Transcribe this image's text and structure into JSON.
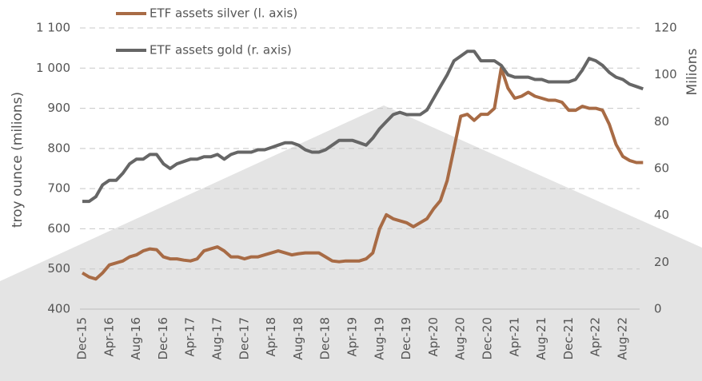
{
  "chart_data": {
    "type": "line",
    "y_label": "troy ounce (milions)",
    "y2_label": "Milions",
    "categories": [
      "Dec-15",
      null,
      null,
      null,
      "Apr-16",
      null,
      null,
      null,
      "Aug-16",
      null,
      null,
      null,
      "Dec-16",
      null,
      null,
      null,
      "Apr-17",
      null,
      null,
      null,
      "Aug-17",
      null,
      null,
      null,
      "Dec-17",
      null,
      null,
      null,
      "Apr-18",
      null,
      null,
      null,
      "Aug-18",
      null,
      null,
      null,
      "Dec-18",
      null,
      null,
      null,
      "Apr-19",
      null,
      null,
      null,
      "Aug-19",
      null,
      null,
      null,
      "Dec-19",
      null,
      null,
      null,
      "Apr-20",
      null,
      null,
      null,
      "Aug-20",
      null,
      null,
      null,
      "Dec-20",
      null,
      null,
      null,
      "Apr-21",
      null,
      null,
      null,
      "Aug-21",
      null,
      null,
      null,
      "Dec-21",
      null,
      null,
      null,
      "Apr-22",
      null,
      null,
      null,
      "Aug-22",
      null,
      null,
      null
    ],
    "series": [
      {
        "name": "ETF assets silver (l. axis)",
        "color": "#a86b45",
        "axis": "y",
        "values": [
          490,
          480,
          475,
          490,
          510,
          515,
          520,
          530,
          535,
          545,
          550,
          548,
          530,
          525,
          525,
          522,
          520,
          525,
          545,
          550,
          555,
          545,
          530,
          530,
          525,
          530,
          530,
          535,
          540,
          545,
          540,
          535,
          538,
          540,
          540,
          540,
          530,
          520,
          518,
          520,
          520,
          520,
          525,
          540,
          600,
          635,
          625,
          620,
          615,
          605,
          615,
          625,
          650,
          670,
          720,
          800,
          880,
          885,
          870,
          885,
          885,
          900,
          1000,
          950,
          925,
          930,
          940,
          930,
          925,
          920,
          920,
          915,
          895,
          895,
          905,
          900,
          900,
          895,
          860,
          810,
          780,
          770,
          765,
          765
        ]
      },
      {
        "name": "ETF assets gold (r. axis)",
        "color": "#666666",
        "axis": "y2",
        "values": [
          46,
          46,
          48,
          53,
          55,
          55,
          58,
          62,
          64,
          64,
          66,
          66,
          62,
          60,
          62,
          63,
          64,
          64,
          65,
          65,
          66,
          64,
          66,
          67,
          67,
          67,
          68,
          68,
          69,
          70,
          71,
          71,
          70,
          68,
          67,
          67,
          68,
          70,
          72,
          72,
          72,
          71,
          70,
          73,
          77,
          80,
          83,
          84,
          83,
          83,
          83,
          85,
          90,
          95,
          100,
          106,
          108,
          110,
          110,
          106,
          106,
          106,
          104,
          100,
          99,
          99,
          99,
          98,
          98,
          97,
          97,
          97,
          97,
          98,
          102,
          107,
          106,
          104,
          101,
          99,
          98,
          96,
          95,
          94
        ]
      }
    ],
    "ylim": [
      400,
      1100
    ],
    "yticks": [
      400,
      500,
      600,
      700,
      800,
      900,
      {
        "value": 1000,
        "label": "1 000"
      },
      {
        "value": 1100,
        "label": "1 100"
      }
    ],
    "y2lim": [
      0,
      120
    ],
    "y2ticks": [
      0,
      20,
      40,
      60,
      80,
      100,
      120
    ],
    "grid": true
  }
}
